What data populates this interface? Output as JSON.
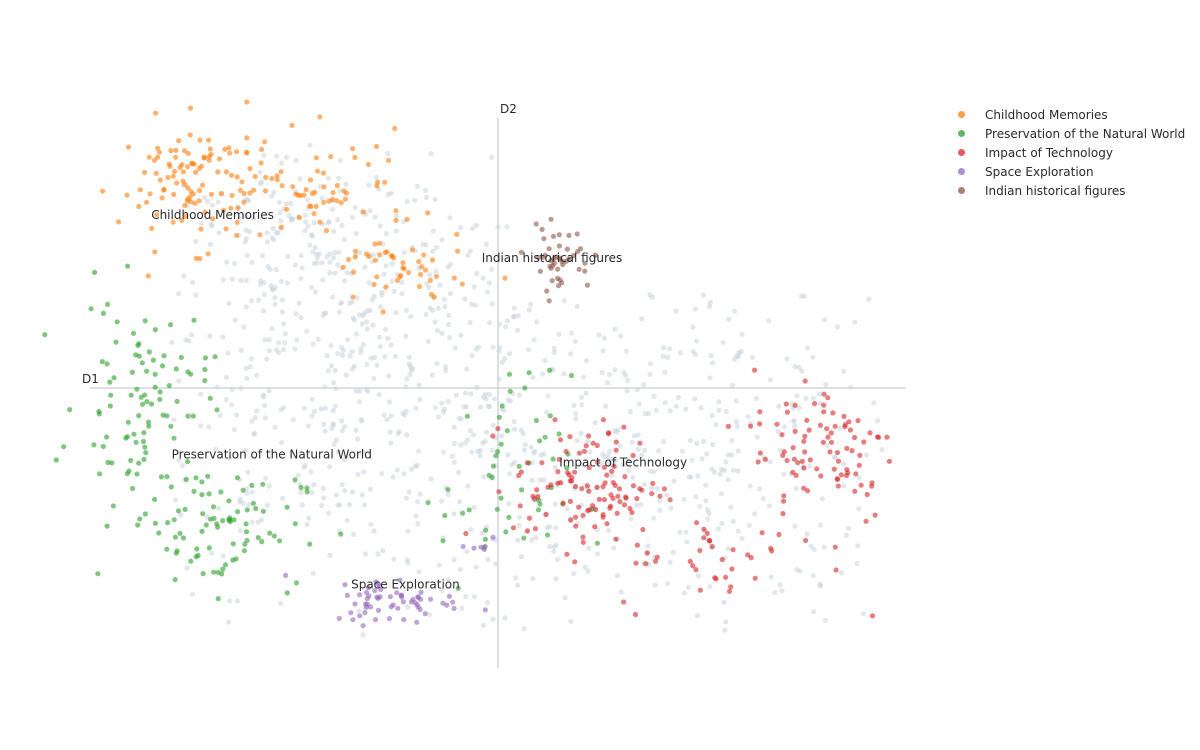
{
  "chart_data": {
    "type": "scatter",
    "axes": {
      "x_label": "D1",
      "y_label": "D2",
      "xlim": [
        -10,
        10
      ],
      "ylim": [
        -7,
        7
      ],
      "grid": false,
      "zero_lines": true
    },
    "background_points_color": "#c9d3da",
    "legend_placement": "top-right",
    "series": [
      {
        "name": "Childhood Memories",
        "color": "#ff7f0e",
        "label_position": [
          -8.5,
          4.3
        ],
        "clusters": [
          {
            "center": [
              -7.3,
              5.2
            ],
            "spread": [
              1.0,
              0.8
            ],
            "count": 120
          },
          {
            "center": [
              -4.0,
              5.0
            ],
            "spread": [
              0.9,
              0.7
            ],
            "count": 50
          },
          {
            "center": [
              -2.5,
              3.0
            ],
            "spread": [
              0.9,
              0.5
            ],
            "count": 45
          }
        ]
      },
      {
        "name": "Preservation of the Natural World",
        "color": "#2ca02c",
        "label_position": [
          -8.0,
          -1.8
        ],
        "clusters": [
          {
            "center": [
              -8.7,
              -0.3
            ],
            "spread": [
              0.8,
              1.3
            ],
            "count": 95
          },
          {
            "center": [
              -7.0,
              -3.5
            ],
            "spread": [
              1.1,
              0.8
            ],
            "count": 85
          },
          {
            "center": [
              0.2,
              -2.5
            ],
            "spread": [
              0.8,
              1.4
            ],
            "count": 50
          }
        ]
      },
      {
        "name": "Impact of Technology",
        "color": "#d62728",
        "label_position": [
          1.5,
          -2.0
        ],
        "clusters": [
          {
            "center": [
              2.2,
              -2.5
            ],
            "spread": [
              0.9,
              0.8
            ],
            "count": 110
          },
          {
            "center": [
              8.0,
              -1.5
            ],
            "spread": [
              0.9,
              1.0
            ],
            "count": 90
          },
          {
            "center": [
              5.5,
              -4.5
            ],
            "spread": [
              1.3,
              0.6
            ],
            "count": 35
          }
        ]
      },
      {
        "name": "Space Exploration",
        "color": "#9467bd",
        "label_position": [
          -3.6,
          -5.1
        ],
        "clusters": [
          {
            "center": [
              -2.5,
              -5.4
            ],
            "spread": [
              0.8,
              0.3
            ],
            "count": 60
          },
          {
            "center": [
              -0.6,
              -4.0
            ],
            "spread": [
              0.2,
              0.2
            ],
            "count": 6
          }
        ]
      },
      {
        "name": "Indian historical figures",
        "color": "#8c564b",
        "label_position": [
          -0.4,
          3.2
        ],
        "clusters": [
          {
            "center": [
              1.5,
              3.3
            ],
            "spread": [
              0.4,
              0.4
            ],
            "count": 45
          }
        ]
      }
    ]
  }
}
